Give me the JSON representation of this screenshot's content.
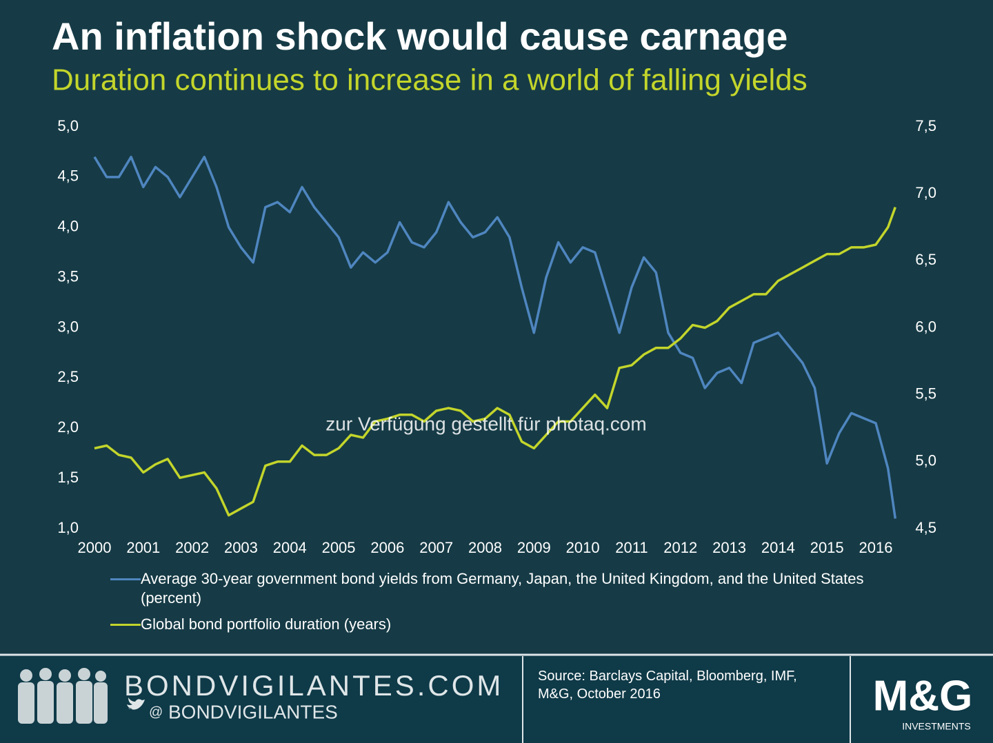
{
  "chart_data": {
    "type": "line",
    "title": "An inflation shock would cause carnage",
    "subtitle": "Duration continues to increase in a world of falling yields",
    "watermark": "zur Verfügung gestellt für photaq.com",
    "x": [
      2000,
      2000.25,
      2000.5,
      2000.75,
      2001,
      2001.25,
      2001.5,
      2001.75,
      2002,
      2002.25,
      2002.5,
      2002.75,
      2003,
      2003.25,
      2003.5,
      2003.75,
      2004,
      2004.25,
      2004.5,
      2004.75,
      2005,
      2005.25,
      2005.5,
      2005.75,
      2006,
      2006.25,
      2006.5,
      2006.75,
      2007,
      2007.25,
      2007.5,
      2007.75,
      2008,
      2008.25,
      2008.5,
      2008.75,
      2009,
      2009.25,
      2009.5,
      2009.75,
      2010,
      2010.25,
      2010.5,
      2010.75,
      2011,
      2011.25,
      2011.5,
      2011.75,
      2012,
      2012.25,
      2012.5,
      2012.75,
      2013,
      2013.25,
      2013.5,
      2013.75,
      2014,
      2014.25,
      2014.5,
      2014.75,
      2015,
      2015.25,
      2015.5,
      2015.75,
      2016,
      2016.25,
      2016.4
    ],
    "series": [
      {
        "name": "Average 30-year government bond yields from Germany, Japan, the United Kingdom, and the United States (percent)",
        "color": "#4f86c0",
        "values": [
          4.7,
          4.5,
          4.5,
          4.7,
          4.4,
          4.6,
          4.5,
          4.3,
          4.5,
          4.7,
          4.4,
          4.0,
          3.8,
          3.65,
          4.2,
          4.25,
          4.15,
          4.4,
          4.2,
          4.05,
          3.9,
          3.6,
          3.75,
          3.65,
          3.75,
          4.05,
          3.85,
          3.8,
          3.95,
          4.25,
          4.05,
          3.9,
          3.95,
          4.1,
          3.9,
          3.4,
          2.95,
          3.5,
          3.85,
          3.65,
          3.8,
          3.75,
          3.35,
          2.95,
          3.4,
          3.7,
          3.55,
          2.95,
          2.75,
          2.7,
          2.4,
          2.55,
          2.6,
          2.45,
          2.85,
          2.9,
          2.95,
          2.8,
          2.65,
          2.4,
          1.65,
          1.95,
          2.15,
          2.1,
          2.05,
          1.6,
          1.1
        ]
      },
      {
        "name": "Global bond portfolio duration (years)",
        "color": "#c3d52b",
        "axis": "y2",
        "values": [
          5.1,
          5.12,
          5.05,
          5.03,
          4.92,
          4.98,
          5.02,
          4.88,
          4.9,
          4.92,
          4.8,
          4.6,
          4.65,
          4.7,
          4.97,
          5.0,
          5.0,
          5.12,
          5.05,
          5.05,
          5.1,
          5.2,
          5.18,
          5.3,
          5.32,
          5.35,
          5.35,
          5.3,
          5.38,
          5.4,
          5.38,
          5.3,
          5.32,
          5.4,
          5.35,
          5.15,
          5.1,
          5.2,
          5.3,
          5.3,
          5.4,
          5.5,
          5.4,
          5.7,
          5.72,
          5.8,
          5.85,
          5.85,
          5.92,
          6.02,
          6.0,
          6.05,
          6.15,
          6.2,
          6.25,
          6.25,
          6.35,
          6.4,
          6.45,
          6.5,
          6.55,
          6.55,
          6.6,
          6.6,
          6.62,
          6.75,
          6.9
        ]
      }
    ],
    "xlim": [
      2000,
      2016.5
    ],
    "xticks": [
      2000,
      2001,
      2002,
      2003,
      2004,
      2005,
      2006,
      2007,
      2008,
      2009,
      2010,
      2011,
      2012,
      2013,
      2014,
      2015,
      2016
    ],
    "ylim": [
      1,
      5
    ],
    "yticks": [
      {
        "value": 1,
        "label": "1,0"
      },
      {
        "value": 1.5,
        "label": "1,5"
      },
      {
        "value": 2,
        "label": "2,0"
      },
      {
        "value": 2.5,
        "label": "2,5"
      },
      {
        "value": 3,
        "label": "3,0"
      },
      {
        "value": 3.5,
        "label": "3,5"
      },
      {
        "value": 4,
        "label": "4,0"
      },
      {
        "value": 4.5,
        "label": "4,5"
      },
      {
        "value": 5,
        "label": "5,0"
      }
    ],
    "y2lim": [
      4.5,
      7.5
    ],
    "y2ticks": [
      {
        "value": 4.5,
        "label": "4,5"
      },
      {
        "value": 5,
        "label": "5,0"
      },
      {
        "value": 5.5,
        "label": "5,5"
      },
      {
        "value": 6,
        "label": "6,0"
      },
      {
        "value": 6.5,
        "label": "6,5"
      },
      {
        "value": 7,
        "label": "7,0"
      },
      {
        "value": 7.5,
        "label": "7,5"
      }
    ],
    "grid": false
  },
  "footer": {
    "site": "BONDVIGILANTES.COM",
    "at": "@",
    "handle": "BONDVIGILANTES",
    "source": "Source: Barclays Capital, Bloomberg, IMF, M&G, October 2016",
    "logo": "M&G",
    "logo_sub": "INVESTMENTS"
  }
}
